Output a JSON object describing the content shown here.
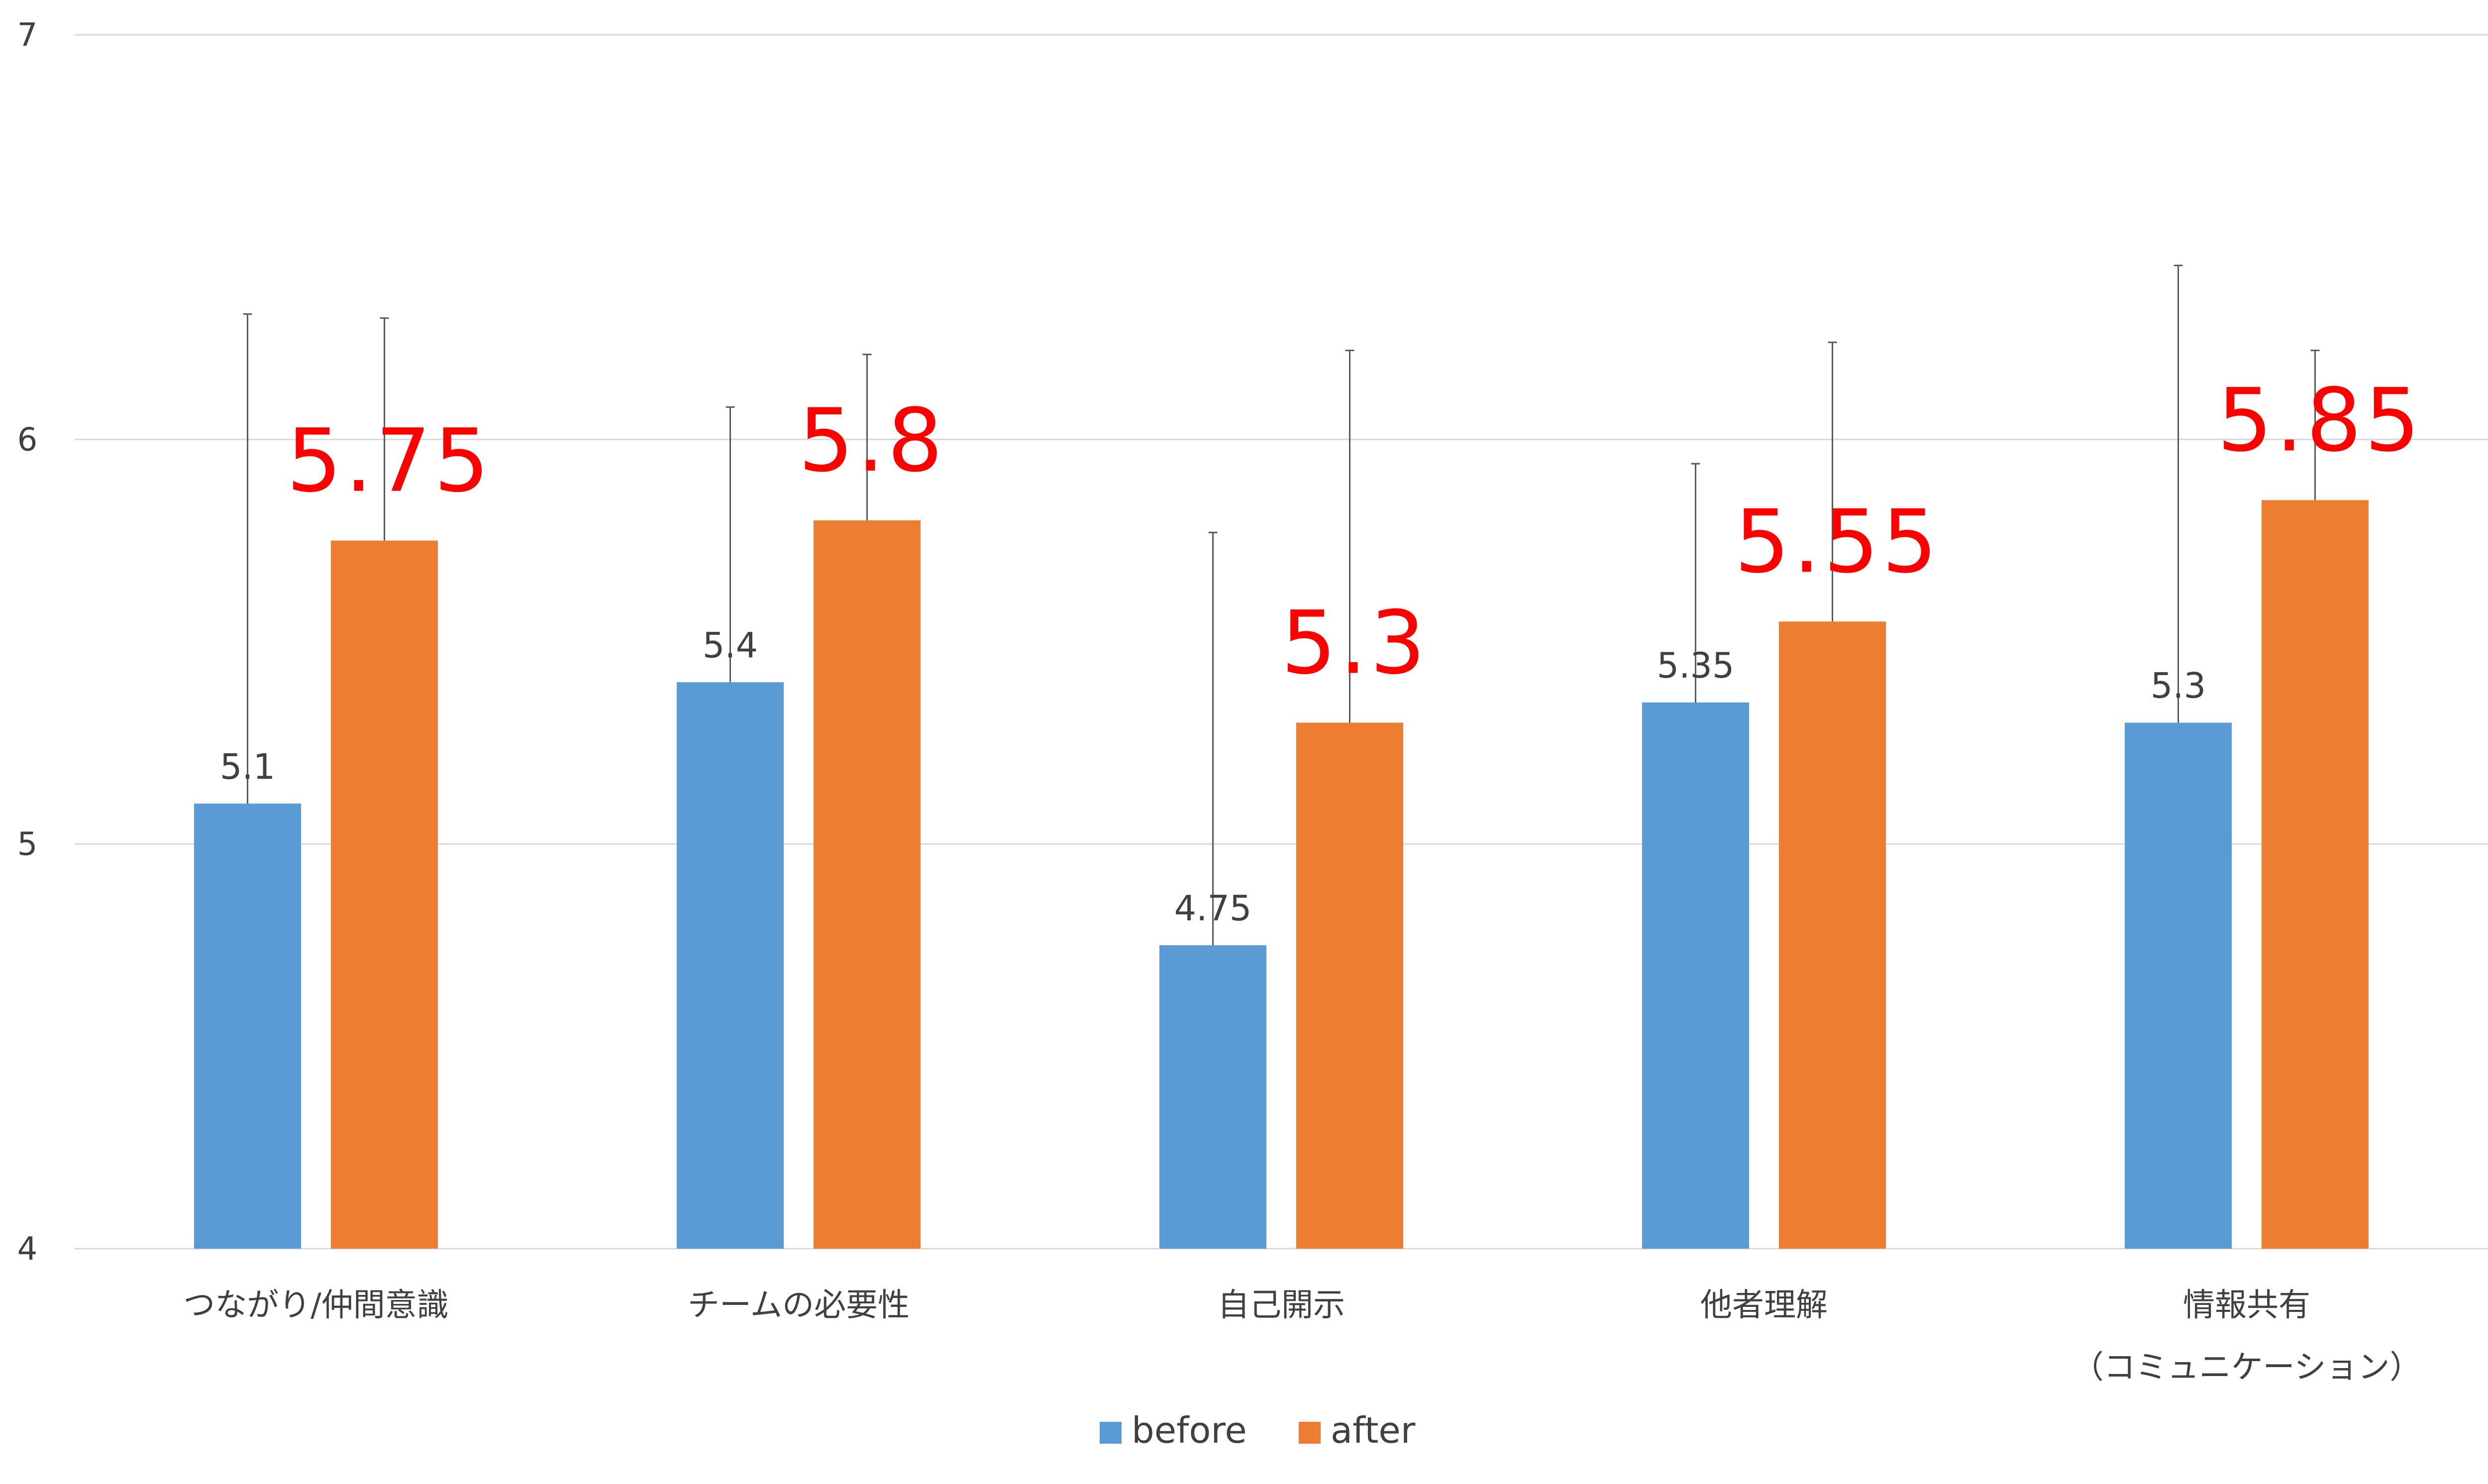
{
  "chart_data": {
    "type": "bar",
    "categories": [
      [
        "つながり/仲間意識"
      ],
      [
        "チームの必要性"
      ],
      [
        "自己開示"
      ],
      [
        "他者理解"
      ],
      [
        "情報共有",
        "（コミュニケーション）"
      ]
    ],
    "series": [
      {
        "name": "before",
        "color": "#5b9bd5",
        "values": [
          5.1,
          5.4,
          4.75,
          5.35,
          5.3
        ],
        "labels": [
          "5.1",
          "5.4",
          "4.75",
          "5.35",
          "5.3"
        ],
        "error_upper": [
          6.31,
          6.08,
          5.77,
          5.94,
          6.43
        ]
      },
      {
        "name": "after",
        "color": "#ed7d31",
        "values": [
          5.75,
          5.8,
          5.3,
          5.55,
          5.85
        ],
        "labels": [
          "5.75",
          "5.8",
          "5.3",
          "5.55",
          "5.85"
        ],
        "error_upper": [
          6.3,
          6.21,
          6.22,
          6.24,
          6.22
        ]
      }
    ],
    "ylim": [
      4,
      7
    ],
    "yticks": [
      "4",
      "5",
      "6",
      "7"
    ],
    "grid": true,
    "legend": "bottom-center",
    "after_label_color": "#ff0000"
  }
}
